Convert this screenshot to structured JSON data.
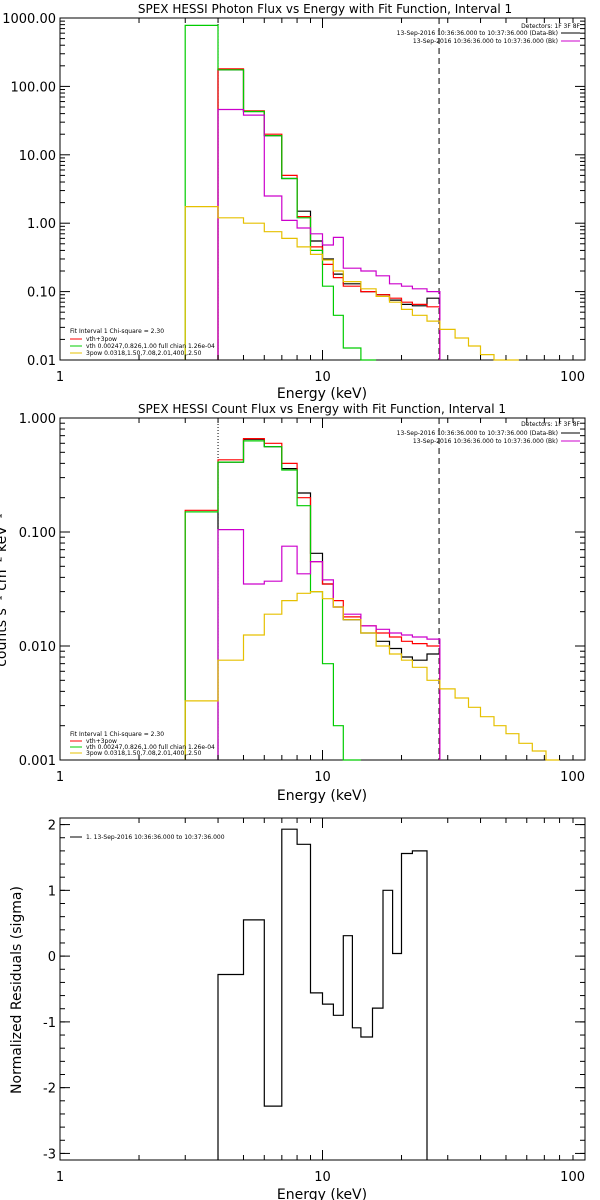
{
  "chart_data": [
    {
      "type": "line",
      "title": "SPEX HESSI Photon Flux vs Energy with Fit Function, Interval 1",
      "xlabel": "Energy (keV)",
      "ylabel": "",
      "xscale": "log",
      "yscale": "log",
      "xlim": [
        1,
        100
      ],
      "ylim": [
        0.01,
        1000
      ],
      "xticks": [
        {
          "v": 1,
          "label": "1"
        },
        {
          "v": 10,
          "label": "10"
        },
        {
          "v": 100,
          "label": "100"
        }
      ],
      "yticks": [
        {
          "v": 0.01,
          "label": "0.01"
        },
        {
          "v": 0.1,
          "label": "0.10"
        },
        {
          "v": 1,
          "label": "1.00"
        },
        {
          "v": 10,
          "label": "10.00"
        },
        {
          "v": 100,
          "label": "100.00"
        },
        {
          "v": 1000,
          "label": "1000.00"
        }
      ],
      "detectors": "Detectors: 1F 3F 8F",
      "info_lines": [
        {
          "text": "13-Sep-2016 10:36:36.000 to 10:37:36.000 (Data-Bk)",
          "color": "#000000"
        },
        {
          "text": "13-Sep-2016 10:36:36.000 to 10:37:36.000 (Bk)",
          "color": "#cc00cc"
        }
      ],
      "legend_title": "Fit Interval 1    Chi-square = 2.30",
      "legend": [
        {
          "text": "vth+3pow",
          "color": "#ff0000"
        },
        {
          "text": "vth 0.00247,0.826,1.00   full chian 1.26e-04",
          "color": "#00cc00"
        },
        {
          "text": "3pow 0.0318,1.50,7.08,2.01,400.,2.50",
          "color": "#e6c000"
        }
      ],
      "vlines": [
        {
          "x": 4.0,
          "style": "dotted"
        },
        {
          "x": 27.8,
          "style": "dashed"
        }
      ],
      "edges": [
        3.0,
        4.0,
        5.0,
        6.0,
        7.0,
        8.0,
        9.0,
        10.0,
        11.0,
        12.0,
        14.0,
        16.0,
        18.0,
        20.0,
        22.0,
        25.0,
        28.0,
        32.0,
        36.0,
        40.0,
        45.0,
        50.0,
        56.0
      ],
      "series": [
        {
          "name": "Data-Bk",
          "color": "#000000",
          "values": [
            null,
            175,
            43,
            19,
            4.5,
            1.5,
            0.55,
            0.3,
            0.18,
            0.13,
            0.1,
            0.09,
            0.075,
            0.065,
            0.062,
            0.08,
            null,
            null,
            null,
            null,
            null,
            null
          ]
        },
        {
          "name": "vth+3pow",
          "color": "#ff0000",
          "values": [
            null,
            180,
            44,
            20,
            5.0,
            1.25,
            0.45,
            0.25,
            0.16,
            0.12,
            0.1,
            0.09,
            0.08,
            0.07,
            0.065,
            0.06,
            null,
            null,
            null,
            null,
            null,
            null
          ]
        },
        {
          "name": "vth",
          "color": "#00cc00",
          "values": [
            780,
            175,
            43,
            19,
            4.5,
            1.2,
            0.4,
            0.12,
            0.045,
            0.015,
            0.003,
            null,
            null,
            null,
            null,
            null,
            null,
            null,
            null,
            null,
            null,
            null
          ]
        },
        {
          "name": "Bk",
          "color": "#cc00cc",
          "values": [
            null,
            46,
            38,
            2.5,
            1.1,
            0.85,
            0.7,
            0.48,
            0.62,
            0.22,
            0.2,
            0.17,
            0.13,
            0.12,
            0.11,
            0.1,
            null,
            null,
            null,
            null,
            null,
            null
          ]
        },
        {
          "name": "3pow",
          "color": "#e6c000",
          "values": [
            1.75,
            1.2,
            1.0,
            0.75,
            0.6,
            0.45,
            0.35,
            0.29,
            0.2,
            0.14,
            0.11,
            0.085,
            0.07,
            0.055,
            0.045,
            0.037,
            0.028,
            0.021,
            0.016,
            0.012,
            0.009,
            0.007
          ]
        }
      ]
    },
    {
      "type": "line",
      "title": "SPEX HESSI Count Flux vs Energy with Fit Function, Interval 1",
      "xlabel": "Energy (keV)",
      "ylabel": "counts s⁻¹ cm⁻² keV⁻¹",
      "xscale": "log",
      "yscale": "log",
      "xlim": [
        1,
        100
      ],
      "ylim": [
        0.001,
        1
      ],
      "xticks": [
        {
          "v": 1,
          "label": "1"
        },
        {
          "v": 10,
          "label": "10"
        },
        {
          "v": 100,
          "label": "100"
        }
      ],
      "yticks": [
        {
          "v": 0.001,
          "label": "0.001"
        },
        {
          "v": 0.01,
          "label": "0.010"
        },
        {
          "v": 0.1,
          "label": "0.100"
        },
        {
          "v": 1,
          "label": "1.000"
        }
      ],
      "detectors": "Detectors: 1F 3F 8F",
      "info_lines": [
        {
          "text": "13-Sep-2016 10:36:36.000 to 10:37:36.000 (Data-Bk)",
          "color": "#000000"
        },
        {
          "text": "13-Sep-2016 10:36:36.000 to 10:37:36.000 (Bk)",
          "color": "#cc00cc"
        }
      ],
      "legend_title": "Fit Interval 1    Chi-square = 2.30",
      "legend": [
        {
          "text": "vth+3pow",
          "color": "#ff0000"
        },
        {
          "text": "vth 0.00247,0.826,1.00   full chian 1.26e-04",
          "color": "#00cc00"
        },
        {
          "text": "3pow 0.0318,1.50,7.08,2.01,400.,2.50",
          "color": "#e6c000"
        }
      ],
      "vlines": [
        {
          "x": 4.0,
          "style": "dotted"
        },
        {
          "x": 27.8,
          "style": "dashed"
        }
      ],
      "edges": [
        3.0,
        4.0,
        5.0,
        6.0,
        7.0,
        8.0,
        9.0,
        10.0,
        11.0,
        12.0,
        14.0,
        16.0,
        18.0,
        20.0,
        22.0,
        25.0,
        28.0,
        32.0,
        36.0,
        40.0,
        45.0,
        50.0,
        56.0,
        63.0,
        71.0,
        80.0
      ],
      "series": [
        {
          "name": "Data-Bk",
          "color": "#000000",
          "values": [
            null,
            0.41,
            0.65,
            0.56,
            0.36,
            0.22,
            0.065,
            0.035,
            0.022,
            0.017,
            0.013,
            0.011,
            0.0095,
            0.008,
            0.0075,
            0.0085,
            null,
            null,
            null,
            null,
            null,
            null,
            null,
            null,
            null
          ]
        },
        {
          "name": "vth+3pow",
          "color": "#ff0000",
          "values": [
            0.155,
            0.43,
            0.66,
            0.6,
            0.4,
            0.2,
            0.055,
            0.035,
            0.025,
            0.018,
            0.015,
            0.013,
            0.012,
            0.011,
            0.0105,
            0.01,
            null,
            null,
            null,
            null,
            null,
            null,
            null,
            null,
            null
          ]
        },
        {
          "name": "vth",
          "color": "#00cc00",
          "values": [
            0.15,
            0.41,
            0.63,
            0.56,
            0.35,
            0.17,
            0.03,
            0.007,
            0.002,
            0.0007,
            null,
            null,
            null,
            null,
            null,
            null,
            null,
            null,
            null,
            null,
            null,
            null,
            null,
            null,
            null
          ]
        },
        {
          "name": "Bk",
          "color": "#cc00cc",
          "values": [
            null,
            0.105,
            0.035,
            0.037,
            0.075,
            0.043,
            0.055,
            0.038,
            0.022,
            0.019,
            0.015,
            0.014,
            0.013,
            0.0125,
            0.012,
            0.0115,
            null,
            null,
            null,
            null,
            null,
            null,
            null,
            null,
            null
          ]
        },
        {
          "name": "3pow",
          "color": "#e6c000",
          "values": [
            0.0033,
            0.0075,
            0.0125,
            0.019,
            0.025,
            0.029,
            0.03,
            0.026,
            0.022,
            0.017,
            0.013,
            0.01,
            0.0085,
            0.0075,
            0.0065,
            0.005,
            0.0042,
            0.0035,
            0.0029,
            0.0024,
            0.002,
            0.0017,
            0.0014,
            0.0012,
            0.001
          ]
        }
      ]
    },
    {
      "type": "line",
      "title": "",
      "xlabel": "Energy (keV)",
      "ylabel": "Normalized Residuals (sigma)",
      "xscale": "log",
      "yscale": "linear",
      "xlim": [
        1,
        100
      ],
      "ylim": [
        -3.1,
        2.1
      ],
      "xticks": [
        {
          "v": 1,
          "label": "1"
        },
        {
          "v": 10,
          "label": "10"
        },
        {
          "v": 100,
          "label": "100"
        }
      ],
      "yticks": [
        {
          "v": -3,
          "label": "-3"
        },
        {
          "v": -2,
          "label": "-2"
        },
        {
          "v": -1,
          "label": "-1"
        },
        {
          "v": 0,
          "label": "0"
        },
        {
          "v": 1,
          "label": "1"
        },
        {
          "v": 2,
          "label": "2"
        }
      ],
      "legend": [
        {
          "text": "1. 13-Sep-2016 10:36:36.000 to 10:37:36.000",
          "color": "#000000"
        }
      ],
      "edges": [
        4.0,
        5.0,
        6.0,
        7.0,
        8.0,
        9.0,
        10.0,
        11.0,
        12.0,
        13.0,
        14.0,
        15.5,
        17.0,
        18.5,
        20.0,
        22.0,
        25.0,
        28.0
      ],
      "series": [
        {
          "name": "Residuals",
          "color": "#000000",
          "values": [
            -0.28,
            0.55,
            -2.28,
            1.93,
            1.7,
            -0.56,
            -0.73,
            -0.9,
            0.31,
            -1.09,
            -1.23,
            -0.79,
            1.0,
            0.04,
            1.56,
            1.6,
            null
          ]
        }
      ]
    }
  ]
}
